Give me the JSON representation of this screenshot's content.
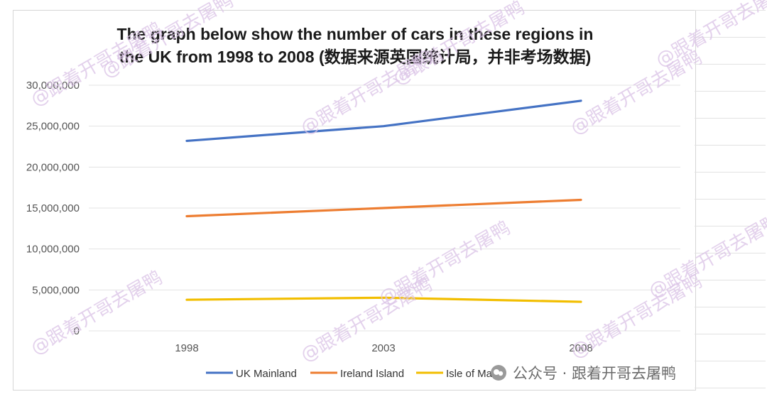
{
  "chart_data": {
    "type": "line",
    "title": "The graph below show the number of cars in these regions in the UK from 1998 to 2008 (数据来源英国统计局，并非考场数据)",
    "title_lines": [
      "The graph below show the number of cars in these regions in",
      "the UK from 1998 to 2008 (数据来源英国统计局，并非考场数据)"
    ],
    "categories": [
      "1998",
      "2003",
      "2008"
    ],
    "series": [
      {
        "name": "UK Mainland",
        "color": "#4472C4",
        "values": [
          23200000,
          25000000,
          28100000
        ]
      },
      {
        "name": "Ireland Island",
        "color": "#ED7D31",
        "values": [
          14000000,
          15000000,
          16000000
        ]
      },
      {
        "name": "Isle of Man",
        "color": "#F2BE00",
        "values": [
          3800000,
          4050000,
          3550000
        ]
      }
    ],
    "ylim": [
      0,
      30000000
    ],
    "yticks": [
      "0",
      "5,000,000",
      "10,000,000",
      "15,000,000",
      "20,000,000",
      "25,000,000",
      "30,000,000"
    ],
    "grid": true,
    "legend": "bottom"
  },
  "watermark": {
    "text": "@跟着开哥去屠鸭",
    "footer": "公众号 · 跟着开哥去屠鸭",
    "color": "#d9c2e6"
  }
}
